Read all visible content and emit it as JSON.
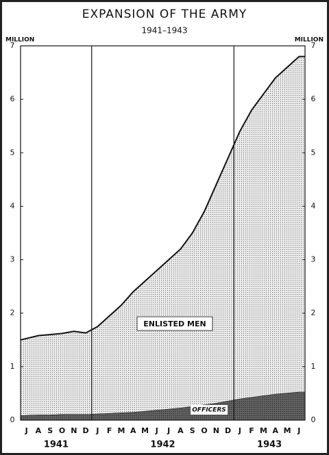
{
  "chart_data": {
    "type": "stacked-area",
    "title": "EXPANSION OF THE ARMY",
    "subtitle": "1941–1943",
    "ylabel": "MILLION",
    "y2label": "MILLION",
    "categories": [
      "J",
      "A",
      "S",
      "O",
      "N",
      "D",
      "J",
      "F",
      "M",
      "A",
      "M",
      "J",
      "J",
      "A",
      "S",
      "O",
      "N",
      "D",
      "J",
      "F",
      "M",
      "A",
      "M",
      "J"
    ],
    "year_labels": [
      "1941",
      "1942",
      "1943"
    ],
    "series": [
      {
        "name": "OFFICERS",
        "color": "#4a4a4a",
        "values": [
          0.09,
          0.1,
          0.1,
          0.11,
          0.11,
          0.11,
          0.12,
          0.13,
          0.14,
          0.15,
          0.17,
          0.19,
          0.21,
          0.23,
          0.26,
          0.29,
          0.32,
          0.36,
          0.4,
          0.43,
          0.46,
          0.49,
          0.51,
          0.53
        ]
      },
      {
        "name": "ENLISTED MEN",
        "color": "#dcdcdc",
        "values": [
          1.41,
          1.48,
          1.5,
          1.51,
          1.55,
          1.52,
          1.63,
          1.82,
          2.01,
          2.25,
          2.43,
          2.61,
          2.79,
          2.97,
          3.24,
          3.61,
          4.08,
          4.54,
          5.0,
          5.37,
          5.64,
          5.91,
          6.09,
          6.27
        ]
      }
    ],
    "ylim": [
      0,
      7
    ],
    "yticks": [
      0,
      1,
      2,
      3,
      4,
      5,
      6,
      7
    ],
    "y2lim": [
      0,
      7
    ],
    "y2ticks": [
      0,
      1,
      2,
      3,
      4,
      5,
      6,
      7
    ]
  }
}
